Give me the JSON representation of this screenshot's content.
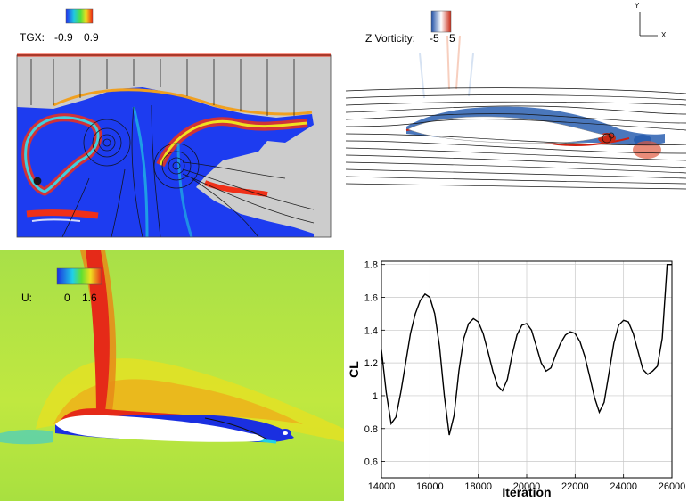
{
  "panels": {
    "tgx": {
      "label": "TGX:",
      "cb_min": "-0.9",
      "cb_max": "0.9",
      "colors": {
        "low": "#1e3cf0",
        "mid": "#38c8e0",
        "high": "#e83020",
        "background": "#cccccc"
      }
    },
    "vorticity": {
      "label": "Z Vorticity:",
      "cb_min": "-5",
      "cb_max": "5",
      "axis_y": "Y",
      "axis_x": "X",
      "colors": {
        "negative": "#2a5fb0",
        "positive": "#d63a24"
      }
    },
    "velocity": {
      "label": "U:",
      "cb_min": "0",
      "cb_max": "1.6",
      "colors": {
        "free_stream": "#b7e63a",
        "high": "#e52a18",
        "low": "#1a2fe0"
      }
    }
  },
  "chart_data": {
    "type": "line",
    "xlabel": "Iteration",
    "ylabel": "CL",
    "xlim": [
      14000,
      26000
    ],
    "ylim": [
      0.5,
      1.82
    ],
    "grid": true,
    "xticks": [
      14000,
      16000,
      18000,
      20000,
      22000,
      24000,
      26000
    ],
    "xtick_labels": [
      "14000",
      "16000",
      "18000",
      "20000",
      "22000",
      "24000",
      "26000"
    ],
    "yticks": [
      0.6,
      0.8,
      1.0,
      1.2,
      1.4,
      1.6,
      1.8
    ],
    "ytick_labels": [
      "0.6",
      "0.8",
      "1",
      "1.2",
      "1.4",
      "1.6",
      "1.8"
    ],
    "series": [
      {
        "color": "#000000",
        "x": [
          14000,
          14200,
          14400,
          14600,
          14800,
          15000,
          15200,
          15400,
          15600,
          15800,
          16000,
          16200,
          16400,
          16600,
          16800,
          17000,
          17200,
          17400,
          17600,
          17800,
          18000,
          18200,
          18400,
          18600,
          18800,
          19000,
          19200,
          19400,
          19600,
          19800,
          20000,
          20200,
          20400,
          20600,
          20800,
          21000,
          21200,
          21400,
          21600,
          21800,
          22000,
          22200,
          22400,
          22600,
          22800,
          23000,
          23200,
          23400,
          23600,
          23800,
          24000,
          24200,
          24400,
          24600,
          24800,
          25000,
          25200,
          25400,
          25600,
          25800,
          26000
        ],
        "y": [
          1.28,
          1.02,
          0.83,
          0.87,
          1.02,
          1.2,
          1.38,
          1.5,
          1.58,
          1.62,
          1.6,
          1.5,
          1.3,
          1.0,
          0.76,
          0.88,
          1.15,
          1.35,
          1.44,
          1.47,
          1.45,
          1.38,
          1.27,
          1.15,
          1.06,
          1.03,
          1.1,
          1.25,
          1.37,
          1.43,
          1.44,
          1.4,
          1.3,
          1.2,
          1.15,
          1.17,
          1.25,
          1.32,
          1.37,
          1.39,
          1.38,
          1.33,
          1.24,
          1.12,
          0.99,
          0.9,
          0.96,
          1.14,
          1.32,
          1.43,
          1.46,
          1.45,
          1.38,
          1.27,
          1.16,
          1.13,
          1.15,
          1.18,
          1.35,
          1.8,
          1.8
        ]
      }
    ]
  }
}
